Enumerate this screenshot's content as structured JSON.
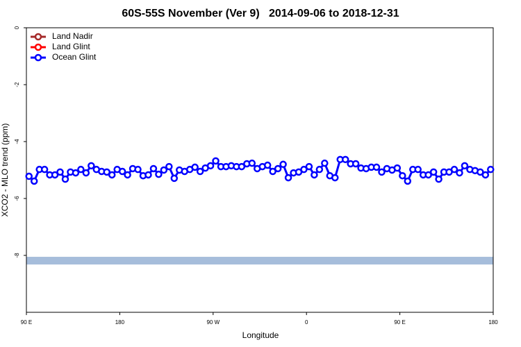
{
  "chart_data": {
    "type": "line",
    "title": "60S-55S November (Ver 9)   2014-09-06 to 2018-12-31",
    "x_label": "Longitude",
    "y_label": "XCO2 - MLO trend (ppm)",
    "xlim": [
      90,
      540
    ],
    "ylim": [
      -10,
      0
    ],
    "xticks": [
      {
        "value": 90,
        "label": "90 E"
      },
      180,
      {
        "value": 270,
        "label": "90 W"
      },
      {
        "value": 360,
        "label": "0"
      },
      {
        "value": 450,
        "label": "90 E"
      },
      {
        "value": 540,
        "label": "180"
      }
    ],
    "yticks": [
      0,
      -2,
      -4,
      -6,
      -8
    ],
    "legend": "top-left",
    "band": {
      "ymin": -8.32,
      "ymax": -8.05,
      "color": "#a6bddb"
    },
    "x": [
      92.5,
      97.5,
      102.5,
      107.5,
      112.5,
      117.5,
      122.5,
      127.5,
      132.5,
      137.5,
      142.5,
      147.5,
      152.5,
      157.5,
      162.5,
      167.5,
      172.5,
      177.5,
      182.5,
      187.5,
      192.5,
      197.5,
      202.5,
      207.5,
      212.5,
      217.5,
      222.5,
      227.5,
      232.5,
      237.5,
      242.5,
      247.5,
      252.5,
      257.5,
      262.5,
      267.5,
      272.5,
      277.5,
      282.5,
      287.5,
      292.5,
      297.5,
      302.5,
      307.5,
      312.5,
      317.5,
      322.5,
      327.5,
      332.5,
      337.5,
      342.5,
      347.5,
      352.5,
      357.5,
      362.5,
      367.5,
      372.5,
      377.5,
      382.5,
      387.5,
      392.5,
      397.5,
      402.5,
      407.5,
      412.5,
      417.5,
      422.5,
      427.5,
      432.5,
      437.5,
      442.5,
      447.5,
      452.5,
      457.5,
      462.5,
      467.5,
      472.5,
      477.5,
      482.5,
      487.5,
      492.5,
      497.5,
      502.5,
      507.5,
      512.5,
      517.5,
      522.5,
      527.5,
      532.5,
      537.5
    ],
    "series": [
      {
        "name": "Land Nadir",
        "color": "#a52a2a",
        "values": [
          null,
          null,
          null,
          null,
          null,
          null,
          null,
          null,
          null,
          null,
          null,
          null,
          null,
          null,
          null,
          null,
          null,
          null,
          null,
          null,
          null,
          null,
          null,
          null,
          null,
          null,
          null,
          null,
          null,
          null,
          null,
          null,
          null,
          null,
          null,
          null,
          null,
          null,
          null,
          null,
          null,
          null,
          null,
          null,
          null,
          null,
          null,
          null,
          null,
          null,
          null,
          null,
          null,
          null,
          null,
          null,
          null,
          null,
          null,
          null,
          null,
          null,
          null,
          null,
          null,
          null,
          null,
          null,
          null,
          null,
          null,
          null,
          null,
          null,
          null,
          null,
          null,
          null,
          null,
          null,
          null,
          null,
          null,
          null,
          null,
          null,
          null,
          null,
          null,
          null
        ]
      },
      {
        "name": "Land Glint",
        "color": "#ff0000",
        "values": [
          null,
          null,
          null,
          null,
          null,
          null,
          null,
          null,
          null,
          null,
          null,
          null,
          null,
          null,
          null,
          null,
          null,
          null,
          null,
          null,
          null,
          null,
          null,
          null,
          null,
          null,
          null,
          null,
          null,
          null,
          null,
          null,
          null,
          null,
          null,
          null,
          null,
          null,
          null,
          null,
          null,
          null,
          null,
          null,
          null,
          null,
          null,
          null,
          null,
          null,
          null,
          null,
          null,
          null,
          null,
          null,
          null,
          null,
          null,
          null,
          null,
          null,
          null,
          null,
          null,
          null,
          null,
          null,
          null,
          null,
          null,
          null,
          null,
          null,
          null,
          null,
          null,
          null,
          null,
          null,
          null,
          null,
          null,
          null,
          null,
          null,
          null,
          null,
          null,
          null
        ]
      },
      {
        "name": "Ocean Glint",
        "color": "#0000ff",
        "values": [
          -5.22,
          -5.39,
          -4.98,
          -4.98,
          -5.17,
          -5.17,
          -5.07,
          -5.32,
          -5.07,
          -5.1,
          -4.98,
          -5.1,
          -4.85,
          -4.98,
          -5.05,
          -5.07,
          -5.17,
          -4.98,
          -5.05,
          -5.17,
          -4.95,
          -4.98,
          -5.2,
          -5.17,
          -4.95,
          -5.15,
          -5.0,
          -4.88,
          -5.29,
          -5.0,
          -5.05,
          -4.98,
          -4.9,
          -5.05,
          -4.93,
          -4.85,
          -4.68,
          -4.88,
          -4.88,
          -4.85,
          -4.88,
          -4.88,
          -4.78,
          -4.76,
          -4.95,
          -4.88,
          -4.83,
          -5.05,
          -4.95,
          -4.8,
          -5.27,
          -5.1,
          -5.07,
          -4.98,
          -4.88,
          -5.17,
          -4.98,
          -4.76,
          -5.2,
          -5.27,
          -4.63,
          -4.63,
          -4.78,
          -4.78,
          -4.93,
          -4.95,
          -4.9,
          -4.9,
          -5.07,
          -4.95,
          -5.0,
          -4.93,
          -5.2,
          -5.39,
          -4.98,
          -4.98,
          -5.17,
          -5.17,
          -5.07,
          -5.32,
          -5.07,
          -5.07,
          -4.98,
          -5.1,
          -4.85,
          -4.98,
          -5.02,
          -5.07,
          -5.17,
          -4.98
        ]
      }
    ]
  }
}
